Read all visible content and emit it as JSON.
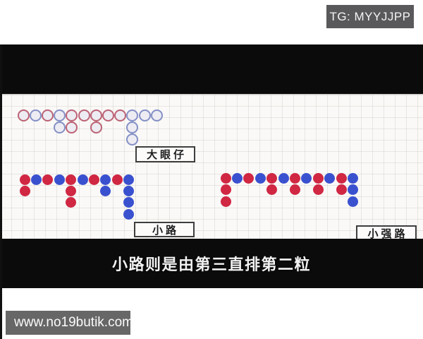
{
  "watermarks": {
    "telegram": "TG: MYYJJPP",
    "website": "www.no19butik.com"
  },
  "caption": "小路则是由第三直排第二粒",
  "colors": {
    "red": "#d02743",
    "blue": "#3a51cf",
    "hollow_red_outline": "#bc6375",
    "hollow_blue_outline": "#8590c6",
    "hollow_fill": "#edecf3",
    "telegram_badge_bg": "#59595b",
    "website_badge_bg": "#676767"
  },
  "roads": [
    {
      "id": "big_eye",
      "label": "大眼仔",
      "style": "hollow",
      "columns": [
        [
          "red"
        ],
        [
          "blue"
        ],
        [
          "red"
        ],
        [
          "blue",
          "blue"
        ],
        [
          "red",
          "red"
        ],
        [
          "red"
        ],
        [
          "red",
          "red"
        ],
        [
          "red"
        ],
        [
          "red"
        ],
        [
          "blue",
          "blue",
          "blue"
        ],
        [
          "blue"
        ],
        [
          "blue"
        ]
      ]
    },
    {
      "id": "small",
      "label": "小路",
      "style": "solid",
      "columns": [
        [
          "red",
          "red"
        ],
        [
          "blue"
        ],
        [
          "red"
        ],
        [
          "blue"
        ],
        [
          "red",
          "red",
          "red"
        ],
        [
          "blue"
        ],
        [
          "red"
        ],
        [
          "blue",
          "blue"
        ],
        [
          "red"
        ],
        [
          "blue",
          "blue",
          "blue",
          "blue"
        ]
      ]
    },
    {
      "id": "cockroach",
      "label": "小强路",
      "style": "solid",
      "columns": [
        [
          "red",
          "red",
          "red"
        ],
        [
          "blue"
        ],
        [
          "red"
        ],
        [
          "blue"
        ],
        [
          "red",
          "red"
        ],
        [
          "blue"
        ],
        [
          "red",
          "red"
        ],
        [
          "blue"
        ],
        [
          "red",
          "red"
        ],
        [
          "blue"
        ],
        [
          "red",
          "red"
        ],
        [
          "blue",
          "blue",
          "blue"
        ]
      ]
    }
  ]
}
